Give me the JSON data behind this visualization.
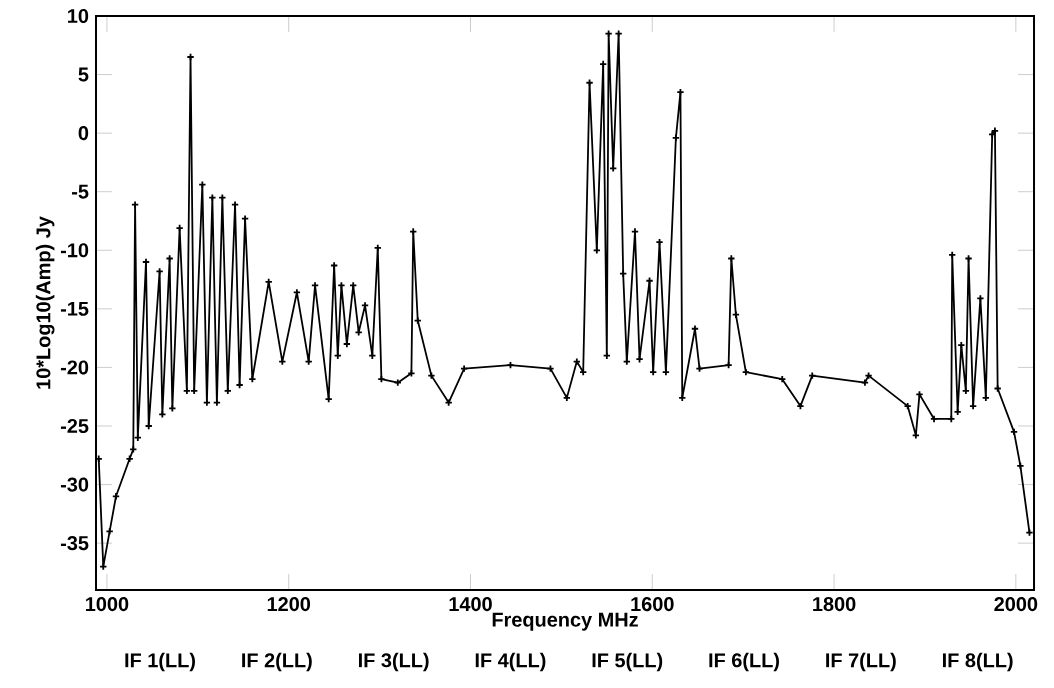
{
  "chart_data": {
    "type": "line",
    "xlabel": "Frequency MHz",
    "ylabel": "10*Log10(Amp) Jy",
    "xlim": [
      988,
      2020
    ],
    "ylim": [
      -39,
      10
    ],
    "xticks": [
      1000,
      1200,
      1400,
      1600,
      1800,
      2000
    ],
    "yticks": [
      -35,
      -30,
      -25,
      -20,
      -15,
      -10,
      -5,
      0,
      5,
      10
    ],
    "marker": "cross",
    "grid": false,
    "series": [
      {
        "color": "#000000",
        "x": [
          991,
          996,
          1003,
          1010,
          1025,
          1029,
          1031,
          1034,
          1043,
          1046,
          1058,
          1061,
          1069,
          1072,
          1080,
          1088,
          1092,
          1096,
          1105,
          1110,
          1116,
          1121,
          1127,
          1133,
          1141,
          1146,
          1152,
          1160,
          1178,
          1193,
          1209,
          1222,
          1229,
          1244,
          1250,
          1254,
          1258,
          1264,
          1271,
          1277,
          1284,
          1292,
          1298,
          1302,
          1320,
          1335,
          1337,
          1342,
          1357,
          1376,
          1393,
          1444,
          1488,
          1506,
          1517,
          1524,
          1531,
          1539,
          1546,
          1550,
          1552,
          1557,
          1563,
          1568,
          1572,
          1581,
          1586,
          1597,
          1601,
          1608,
          1615,
          1626,
          1631,
          1633,
          1647,
          1652,
          1684,
          1687,
          1692,
          1703,
          1743,
          1763,
          1776,
          1834,
          1838,
          1881,
          1890,
          1894,
          1910,
          1929,
          1930,
          1936,
          1940,
          1945,
          1948,
          1953,
          1961,
          1967,
          1974,
          1977,
          1980,
          1998,
          2005,
          2015
        ],
        "values": [
          -27.8,
          -37,
          -34,
          -31,
          -27.8,
          -27,
          -6.1,
          -26,
          -11,
          -25,
          -11.8,
          -24,
          -10.7,
          -23.5,
          -8.1,
          -22,
          6.5,
          -22,
          -4.4,
          -23,
          -5.5,
          -23,
          -5.5,
          -22,
          -6.1,
          -21.5,
          -7.3,
          -21,
          -12.7,
          -19.5,
          -13.6,
          -19.5,
          -13,
          -22.7,
          -11.3,
          -19,
          -13,
          -18,
          -13,
          -17,
          -14.7,
          -19,
          -9.8,
          -21,
          -21.3,
          -20.5,
          -8.4,
          -16,
          -20.7,
          -23,
          -20.1,
          -19.8,
          -20.1,
          -22.6,
          -19.5,
          -20.4,
          4.3,
          -10,
          5.9,
          -19,
          8.5,
          -3,
          8.5,
          -12,
          -19.5,
          -8.4,
          -19.3,
          -12.6,
          -20.4,
          -9.3,
          -20.4,
          -0.4,
          3.5,
          -22.6,
          -16.7,
          -20.1,
          -19.8,
          -10.7,
          -15.5,
          -20.4,
          -21,
          -23.3,
          -20.7,
          -21.3,
          -20.7,
          -23.3,
          -25.8,
          -22.3,
          -24.4,
          -24.4,
          -10.4,
          -23.8,
          -18.1,
          -22,
          -10.7,
          -23.3,
          -14.1,
          -22.6,
          -0.1,
          0.2,
          -21.8,
          -25.5,
          -28.4,
          -34.1
        ]
      }
    ],
    "annotations": [
      "IF 1(LL)",
      "IF 2(LL)",
      "IF 3(LL)",
      "IF 4(LL)",
      "IF 5(LL)",
      "IF 6(LL)",
      "IF 7(LL)",
      "IF 8(LL)"
    ]
  }
}
